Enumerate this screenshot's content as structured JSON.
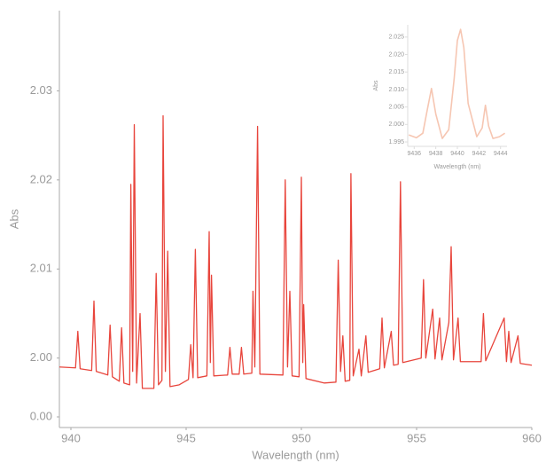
{
  "chart_data": [
    {
      "type": "line",
      "xlabel": "Wavelength (nm)",
      "ylabel": "Abs",
      "color": "#e8453c",
      "xlim": [
        939.5,
        960
      ],
      "xticks": [
        940,
        945,
        950,
        955,
        960
      ],
      "ylim": [
        1.9934,
        2.039
      ],
      "yticks": [
        2.03,
        2.02,
        2.01,
        {
          "value": 2.0,
          "label": "2.00"
        },
        {
          "value": 0,
          "label": "0.00"
        }
      ],
      "x": [
        939.5,
        940.2,
        940.3,
        940.4,
        940.9,
        941.0,
        941.1,
        941.6,
        941.7,
        941.8,
        942.1,
        942.2,
        942.3,
        942.55,
        942.6,
        942.68,
        942.75,
        942.85,
        943.0,
        943.1,
        943.6,
        943.7,
        943.8,
        943.95,
        944.0,
        944.1,
        944.2,
        944.3,
        944.7,
        945.1,
        945.2,
        945.3,
        945.4,
        945.5,
        945.9,
        946.0,
        946.05,
        946.1,
        946.2,
        946.8,
        946.9,
        947.0,
        947.3,
        947.4,
        947.5,
        947.85,
        947.9,
        947.98,
        948.1,
        948.2,
        949.2,
        949.3,
        949.4,
        949.5,
        949.6,
        949.9,
        950.0,
        950.06,
        950.1,
        950.2,
        951.0,
        951.5,
        951.6,
        951.7,
        951.8,
        951.9,
        952.1,
        952.15,
        952.25,
        952.5,
        952.6,
        952.8,
        952.9,
        953.4,
        953.5,
        953.6,
        953.9,
        954.0,
        954.2,
        954.3,
        954.4,
        955.2,
        955.3,
        955.4,
        955.7,
        955.8,
        956.0,
        956.1,
        956.4,
        956.5,
        956.6,
        956.8,
        956.9,
        957.8,
        957.9,
        958.0,
        958.8,
        958.9,
        959.0,
        959.1,
        959.4,
        959.5,
        960.0
      ],
      "values": [
        1.999,
        1.9989,
        2.003,
        1.9988,
        1.9986,
        2.0064,
        1.9985,
        1.9981,
        2.0037,
        1.9979,
        1.9974,
        2.0034,
        1.9972,
        1.997,
        2.0195,
        1.9985,
        2.0262,
        1.9972,
        2.005,
        1.9966,
        1.9966,
        2.0095,
        1.997,
        1.9975,
        2.0272,
        1.9985,
        2.012,
        1.9968,
        1.997,
        1.9976,
        2.0015,
        1.9978,
        2.0122,
        1.9978,
        1.998,
        2.0142,
        1.9995,
        2.0093,
        1.998,
        1.9981,
        2.0012,
        1.9982,
        1.9982,
        2.0012,
        1.9982,
        1.9983,
        2.0075,
        1.999,
        2.026,
        1.9982,
        1.9981,
        2.02,
        1.999,
        2.0075,
        1.998,
        1.9979,
        2.0203,
        1.9995,
        2.006,
        1.9977,
        1.9972,
        1.9973,
        2.011,
        1.9985,
        2.0025,
        1.9974,
        1.9975,
        2.0207,
        1.998,
        2.001,
        1.998,
        2.0025,
        1.9984,
        1.9988,
        2.0045,
        1.9989,
        2.003,
        1.9992,
        1.9993,
        2.0198,
        1.9995,
        2.0,
        2.0088,
        2.0,
        2.0055,
        1.9999,
        2.0045,
        1.9998,
        2.004,
        2.0125,
        1.9998,
        2.0045,
        1.9996,
        1.9996,
        2.005,
        1.9997,
        2.0045,
        1.9996,
        2.003,
        1.9995,
        2.0025,
        1.9994,
        1.9992
      ]
    },
    {
      "type": "line",
      "xlabel": "Wavelength (nm)",
      "ylabel": "Abs",
      "color": "#f6c6b2",
      "xlim": [
        9435.4,
        9444.6
      ],
      "xticks": [
        9436,
        9438,
        9440,
        9442,
        9444
      ],
      "ylim": [
        1.9945,
        2.0285
      ],
      "yticks": [
        2.025,
        {
          "value": 2.02,
          "label": "2.020"
        },
        2.015,
        {
          "value": 2.01,
          "label": "2.010"
        },
        2.005,
        {
          "value": 2.0,
          "label": "2.000"
        },
        1.995
      ],
      "x": [
        9435.5,
        9436.2,
        9436.8,
        9437.2,
        9437.6,
        9438.0,
        9438.6,
        9439.2,
        9439.7,
        9440.0,
        9440.3,
        9440.6,
        9441.0,
        9441.8,
        9442.3,
        9442.6,
        9442.9,
        9443.3,
        9443.9,
        9444.4
      ],
      "values": [
        1.997,
        1.9962,
        1.9975,
        2.004,
        2.0103,
        2.003,
        1.996,
        1.9985,
        2.013,
        2.024,
        2.0272,
        2.022,
        2.006,
        1.9965,
        1.999,
        2.0055,
        1.9995,
        1.996,
        1.9965,
        1.9975
      ]
    }
  ]
}
